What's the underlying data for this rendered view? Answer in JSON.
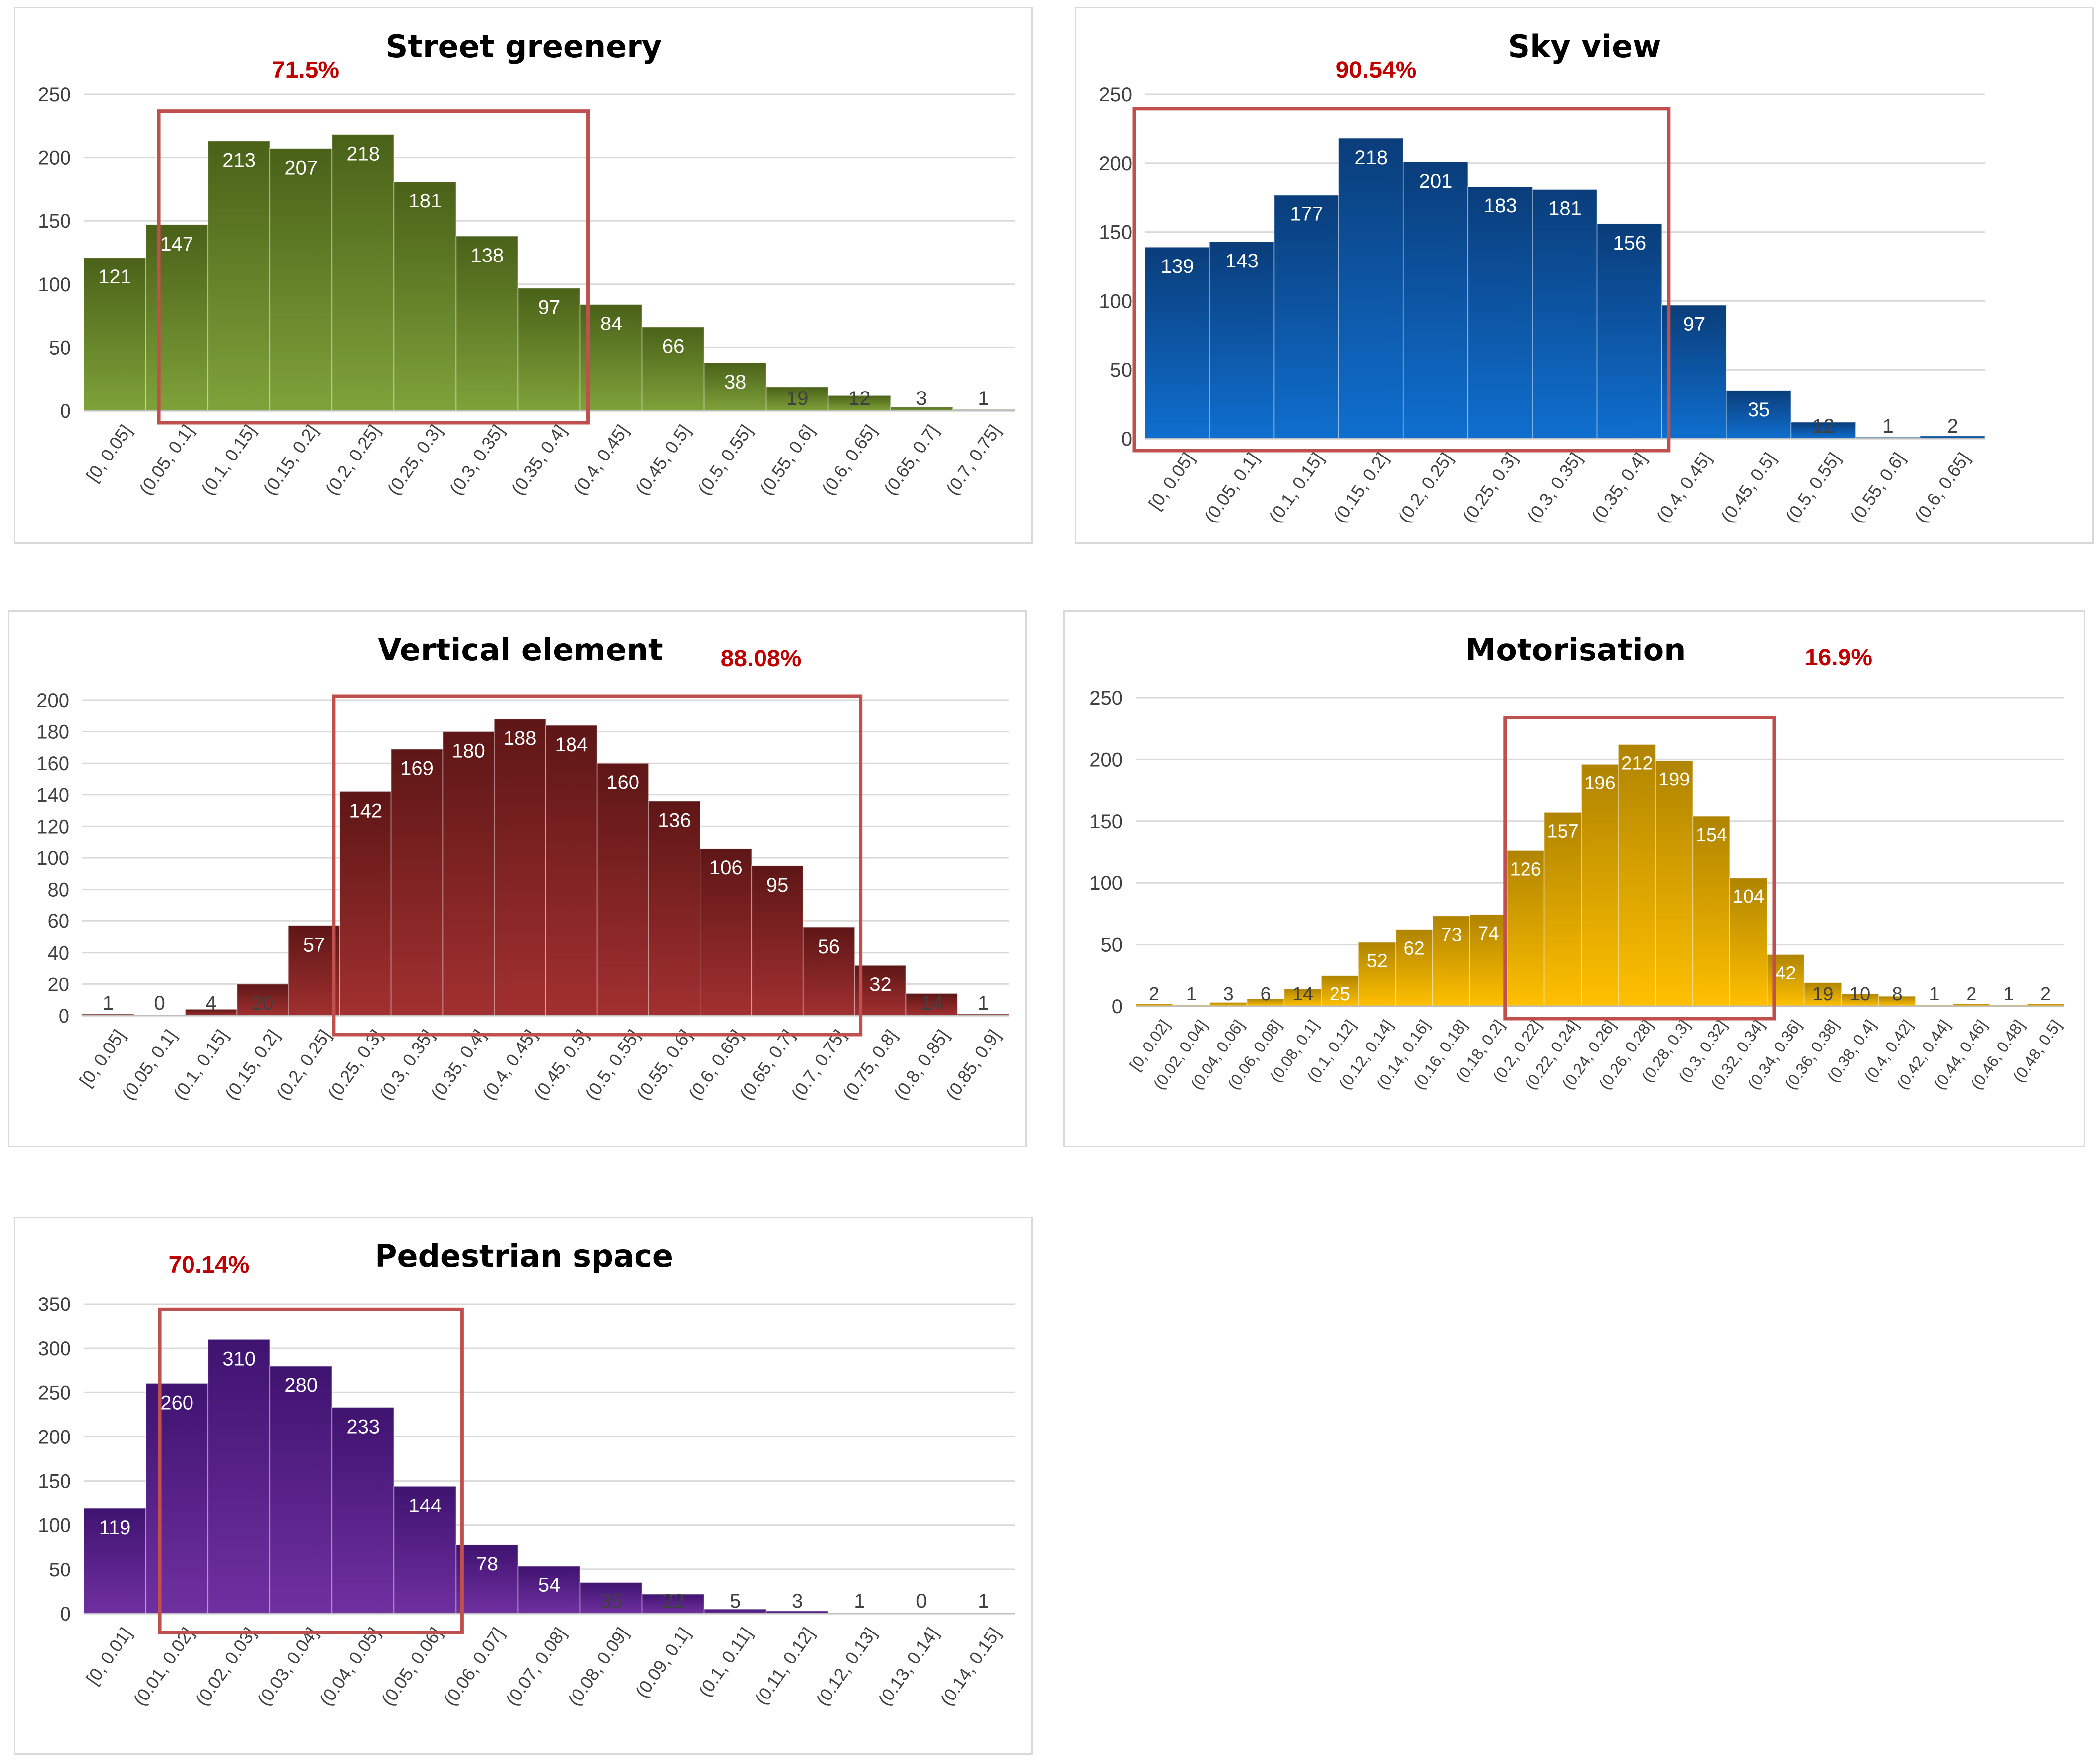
{
  "theme": {
    "highlight_box_color": "#c0504d",
    "percent_color": "#c00000",
    "grid_color": "#d9d9d9",
    "axis_text_color": "#404040"
  },
  "chart_data": [
    {
      "id": "street-greenery",
      "type": "bar",
      "title": "Street greenery",
      "highlight_percent": "71.5%",
      "highlight_range": [
        1,
        7
      ],
      "colors": {
        "top": "#4a6118",
        "bottom": "#7fa23a",
        "label_inside": "#ffffff",
        "label_outside": "#404040"
      },
      "ylim": [
        0,
        250
      ],
      "yticks": [
        0,
        50,
        100,
        150,
        200,
        250
      ],
      "ytick_labels": [
        "0",
        "50",
        "100",
        "150",
        "200",
        "250"
      ],
      "categories": [
        "[0, 0.05]",
        "(0.05, 0.1]",
        "(0.1, 0.15]",
        "(0.15, 0.2]",
        "(0.2, 0.25]",
        "(0.25, 0.3]",
        "(0.3, 0.35]",
        "(0.35, 0.4]",
        "(0.4, 0.45]",
        "(0.45, 0.5]",
        "(0.5, 0.55]",
        "(0.55, 0.6]",
        "(0.6, 0.65]",
        "(0.65, 0.7]",
        "(0.7, 0.75]"
      ],
      "values": [
        121,
        147,
        213,
        207,
        218,
        181,
        138,
        97,
        84,
        66,
        38,
        19,
        12,
        3,
        1
      ],
      "value_labels": [
        "121",
        "147",
        "213",
        "207",
        "218",
        "181",
        "138",
        "97",
        "84",
        "66",
        "38",
        "19",
        "12",
        "3",
        "1"
      ],
      "xlabel": "",
      "ylabel": "",
      "grid": true,
      "legend": "none"
    },
    {
      "id": "sky-view",
      "type": "bar",
      "title": "Sky view",
      "highlight_percent": "90.54%",
      "highlight_range": [
        0,
        7
      ],
      "colors": {
        "top": "#0a3d7a",
        "bottom": "#0f6fcf",
        "label_inside": "#ffffff",
        "label_outside": "#404040"
      },
      "ylim": [
        0,
        250
      ],
      "yticks": [
        0,
        50,
        100,
        150,
        200,
        250
      ],
      "ytick_labels": [
        "0",
        "50",
        "100",
        "150",
        "200",
        "250"
      ],
      "categories": [
        "[0, 0.05]",
        "(0.05, 0.1]",
        "(0.1, 0.15]",
        "(0.15, 0.2]",
        "(0.2, 0.25]",
        "(0.25, 0.3]",
        "(0.3, 0.35]",
        "(0.35, 0.4]",
        "(0.4, 0.45]",
        "(0.45, 0.5]",
        "(0.5, 0.55]",
        "(0.55, 0.6]",
        "(0.6, 0.65]"
      ],
      "values": [
        139,
        143,
        177,
        218,
        201,
        183,
        181,
        156,
        97,
        35,
        12,
        1,
        2
      ],
      "value_labels": [
        "139",
        "143",
        "177",
        "218",
        "201",
        "183",
        "181",
        "156",
        "97",
        "35",
        "12",
        "1",
        "2"
      ],
      "xlabel": "",
      "ylabel": "",
      "grid": true,
      "legend": "none"
    },
    {
      "id": "vertical-element",
      "type": "bar",
      "title": "Vertical element",
      "highlight_percent": "88.08%",
      "highlight_range": [
        5,
        14
      ],
      "colors": {
        "top": "#5e1616",
        "bottom": "#a23030",
        "label_inside": "#ffffff",
        "label_outside": "#404040"
      },
      "ylim": [
        0,
        200
      ],
      "yticks": [
        0,
        20,
        40,
        60,
        80,
        100,
        120,
        140,
        160,
        180,
        200
      ],
      "ytick_labels": [
        "0",
        "20",
        "40",
        "60",
        "80",
        "100",
        "120",
        "140",
        "160",
        "180",
        "200"
      ],
      "categories": [
        "[0, 0.05]",
        "(0.05, 0.1]",
        "(0.1, 0.15]",
        "(0.15, 0.2]",
        "(0.2, 0.25]",
        "(0.25, 0.3]",
        "(0.3, 0.35]",
        "(0.35, 0.4]",
        "(0.4, 0.45]",
        "(0.45, 0.5]",
        "(0.5, 0.55]",
        "(0.55, 0.6]",
        "(0.6, 0.65]",
        "(0.65, 0.7]",
        "(0.7, 0.75]",
        "(0.75, 0.8]",
        "(0.8, 0.85]",
        "(0.85, 0.9]"
      ],
      "values": [
        1,
        0,
        4,
        20,
        57,
        142,
        169,
        180,
        188,
        184,
        160,
        136,
        106,
        95,
        56,
        32,
        14,
        1
      ],
      "value_labels": [
        "1",
        "0",
        "4",
        "20",
        "57",
        "142",
        "169",
        "180",
        "188",
        "184",
        "160",
        "136",
        "106",
        "95",
        "56",
        "32",
        "14",
        "1"
      ],
      "xlabel": "",
      "ylabel": "",
      "grid": true,
      "legend": "none"
    },
    {
      "id": "motorisation",
      "type": "bar",
      "title": "Motorisation",
      "highlight_percent": "16.9%",
      "highlight_range": [
        10,
        16
      ],
      "colors": {
        "top": "#b08400",
        "bottom": "#ffc000",
        "label_inside": "#ffffff",
        "label_outside": "#404040"
      },
      "ylim": [
        0,
        250
      ],
      "yticks": [
        0,
        50,
        100,
        150,
        200,
        250
      ],
      "ytick_labels": [
        "0",
        "50",
        "100",
        "150",
        "200",
        "250"
      ],
      "categories": [
        "[0, 0.02]",
        "(0.02, 0.04]",
        "(0.04, 0.06]",
        "(0.06, 0.08]",
        "(0.08, 0.1]",
        "(0.1, 0.12]",
        "(0.12, 0.14]",
        "(0.14, 0.16]",
        "(0.16, 0.18]",
        "(0.18, 0.2]",
        "(0.2, 0.22]",
        "(0.22, 0.24]",
        "(0.24, 0.26]",
        "(0.26, 0.28]",
        "(0.28, 0.3]",
        "(0.3, 0.32]",
        "(0.32, 0.34]",
        "(0.34, 0.36]",
        "(0.36, 0.38]",
        "(0.38, 0.4]",
        "(0.4, 0.42]",
        "(0.42, 0.44]",
        "(0.44, 0.46]",
        "(0.46, 0.48]",
        "(0.48, 0.5]"
      ],
      "values": [
        2,
        1,
        3,
        6,
        14,
        25,
        52,
        62,
        73,
        74,
        126,
        157,
        196,
        212,
        199,
        154,
        104,
        42,
        19,
        10,
        8,
        1,
        2,
        1,
        2
      ],
      "value_labels": [
        "2",
        "1",
        "3",
        "6",
        "14",
        "25",
        "52",
        "62",
        "73",
        "74",
        "126",
        "157",
        "196",
        "212",
        "199",
        "154",
        "104",
        "42",
        "19",
        "10",
        "8",
        "1",
        "2",
        "1",
        "2"
      ],
      "xlabel": "",
      "ylabel": "",
      "grid": true,
      "legend": "none"
    },
    {
      "id": "pedestrian-space",
      "type": "bar",
      "title": "Pedestrian space",
      "highlight_percent": "70.14%",
      "highlight_range": [
        1,
        5
      ],
      "colors": {
        "top": "#3f1370",
        "bottom": "#7030a0",
        "label_inside": "#ffffff",
        "label_outside": "#404040"
      },
      "ylim": [
        0,
        350
      ],
      "yticks": [
        0,
        50,
        100,
        150,
        200,
        250,
        300,
        350
      ],
      "ytick_labels": [
        "0",
        "50",
        "100",
        "150",
        "200",
        "250",
        "300",
        "350"
      ],
      "categories": [
        "[0, 0.01]",
        "(0.01, 0.02]",
        "(0.02, 0.03]",
        "(0.03, 0.04]",
        "(0.04, 0.05]",
        "(0.05, 0.06]",
        "(0.06, 0.07]",
        "(0.07, 0.08]",
        "(0.08, 0.09]",
        "(0.09, 0.1]",
        "(0.1, 0.11]",
        "(0.11, 0.12]",
        "(0.12, 0.13]",
        "(0.13, 0.14]",
        "(0.14, 0.15]"
      ],
      "values": [
        119,
        260,
        310,
        280,
        233,
        144,
        78,
        54,
        35,
        22,
        5,
        3,
        1,
        0,
        1
      ],
      "value_labels": [
        "119",
        "260",
        "310",
        "280",
        "233",
        "144",
        "78",
        "54",
        "35",
        "22",
        "5",
        "3",
        "1",
        "0",
        "1"
      ],
      "xlabel": "",
      "ylabel": "",
      "grid": true,
      "legend": "none"
    }
  ]
}
